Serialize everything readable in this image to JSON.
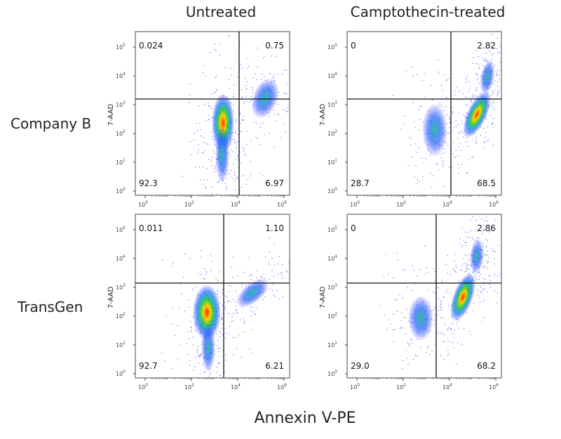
{
  "columns": [
    "Untreated",
    "Camptothecin-treated"
  ],
  "rows": [
    "Company B",
    "TransGen"
  ],
  "x_axis_label": "Annexin V-PE",
  "y_axis_label": "7-AAD",
  "tick_base": "10",
  "x_tick_exponents": [
    "0",
    "2",
    "4",
    "6"
  ],
  "y_tick_exponents": [
    "0",
    "1",
    "2",
    "3",
    "4",
    "5"
  ],
  "panels": [
    {
      "upper_left": "0.024",
      "upper_right": "0.75",
      "lower_left": "92.3",
      "lower_right": "6.97"
    },
    {
      "upper_left": "0",
      "upper_right": "2.82",
      "lower_left": "28.7",
      "lower_right": "68.5"
    },
    {
      "upper_left": "0.011",
      "upper_right": "1.10",
      "lower_left": "92.7",
      "lower_right": "6.21"
    },
    {
      "upper_left": "0",
      "upper_right": "2.86",
      "lower_left": "29.0",
      "lower_right": "68.2"
    }
  ]
}
